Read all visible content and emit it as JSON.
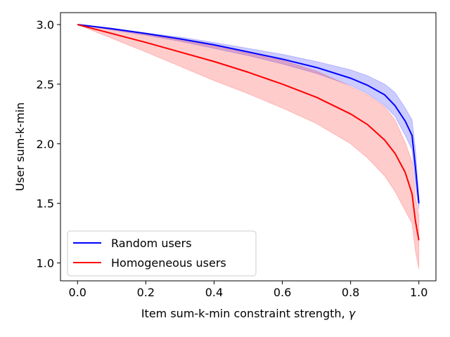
{
  "chart_data": {
    "type": "line",
    "title": "",
    "xlabel": "Item sum-k-min constraint strength, ",
    "xlabel_symbol": "γ",
    "ylabel": "User sum-k-min",
    "xlim": [
      -0.05,
      1.05
    ],
    "ylim": [
      0.85,
      3.1
    ],
    "xticks": [
      0.0,
      0.2,
      0.4,
      0.6,
      0.8,
      1.0
    ],
    "xtick_labels": [
      "0.0",
      "0.2",
      "0.4",
      "0.6",
      "0.8",
      "1.0"
    ],
    "yticks": [
      1.0,
      1.5,
      2.0,
      2.5,
      3.0
    ],
    "ytick_labels": [
      "1.0",
      "1.5",
      "2.0",
      "2.5",
      "3.0"
    ],
    "grid": false,
    "legend_position": "lower-left",
    "x": [
      0.0,
      0.1,
      0.2,
      0.3,
      0.4,
      0.5,
      0.6,
      0.7,
      0.8,
      0.85,
      0.9,
      0.93,
      0.96,
      0.98,
      0.99,
      1.0
    ],
    "series": [
      {
        "name": "Random users",
        "color": "#0000ff",
        "values": [
          3.0,
          2.965,
          2.925,
          2.88,
          2.83,
          2.77,
          2.71,
          2.64,
          2.55,
          2.49,
          2.41,
          2.32,
          2.19,
          2.07,
          1.8,
          1.5
        ],
        "lower": [
          3.0,
          2.955,
          2.91,
          2.86,
          2.8,
          2.74,
          2.67,
          2.59,
          2.49,
          2.42,
          2.32,
          2.23,
          2.07,
          1.95,
          1.65,
          1.45
        ],
        "upper": [
          3.0,
          2.97,
          2.93,
          2.895,
          2.85,
          2.8,
          2.75,
          2.69,
          2.62,
          2.57,
          2.5,
          2.43,
          2.3,
          2.2,
          1.95,
          1.55
        ]
      },
      {
        "name": "Homogeneous users",
        "color": "#ff0000",
        "values": [
          3.0,
          2.925,
          2.85,
          2.77,
          2.69,
          2.6,
          2.5,
          2.39,
          2.25,
          2.16,
          2.03,
          1.92,
          1.76,
          1.58,
          1.35,
          1.19
        ],
        "lower": [
          3.0,
          2.885,
          2.77,
          2.65,
          2.53,
          2.42,
          2.3,
          2.17,
          2.0,
          1.88,
          1.73,
          1.6,
          1.44,
          1.33,
          1.1,
          0.95
        ],
        "upper": [
          3.0,
          2.96,
          2.92,
          2.87,
          2.82,
          2.76,
          2.7,
          2.61,
          2.48,
          2.41,
          2.31,
          2.2,
          2.01,
          1.85,
          1.55,
          1.4
        ]
      }
    ]
  }
}
